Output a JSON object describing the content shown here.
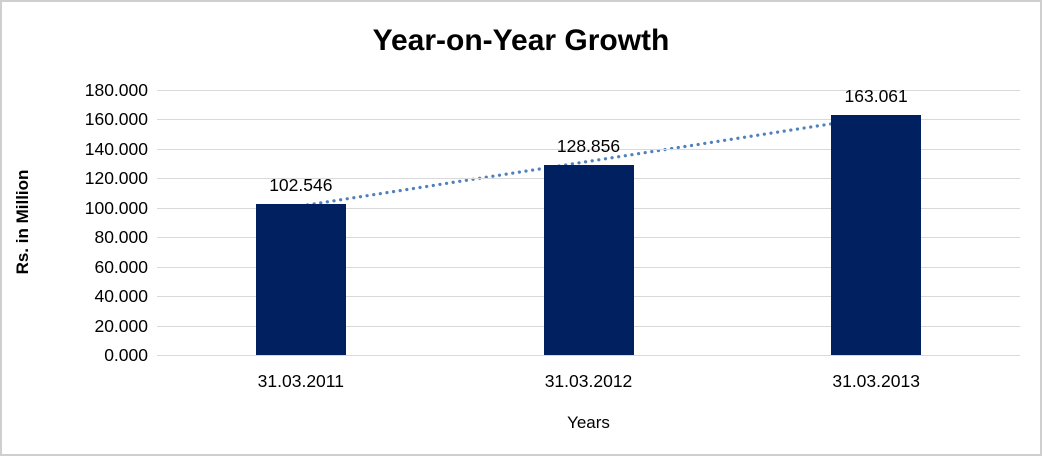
{
  "chart_data": {
    "type": "bar",
    "title": "Year-on-Year Growth",
    "xlabel": "Years",
    "ylabel": "Rs. in Million",
    "categories": [
      "31.03.2011",
      "31.03.2012",
      "31.03.2013"
    ],
    "values": [
      102.546,
      128.856,
      163.061
    ],
    "data_labels": [
      "102.546",
      "128.856",
      "163.061"
    ],
    "ylim": [
      0,
      180
    ],
    "ytick_step": 20,
    "ytick_labels": [
      "0.000",
      "20.000",
      "40.000",
      "60.000",
      "80.000",
      "100.000",
      "120.000",
      "140.000",
      "160.000",
      "180.000"
    ],
    "grid": true,
    "legend_position": "none",
    "trendline": {
      "type": "linear",
      "style": "dotted"
    },
    "colors": {
      "bar": "#002060",
      "trendline": "#4f81bd",
      "gridline": "#d9d9d9",
      "text": "#000000",
      "frame_border": "#cfcfcf",
      "background": "#ffffff"
    }
  }
}
